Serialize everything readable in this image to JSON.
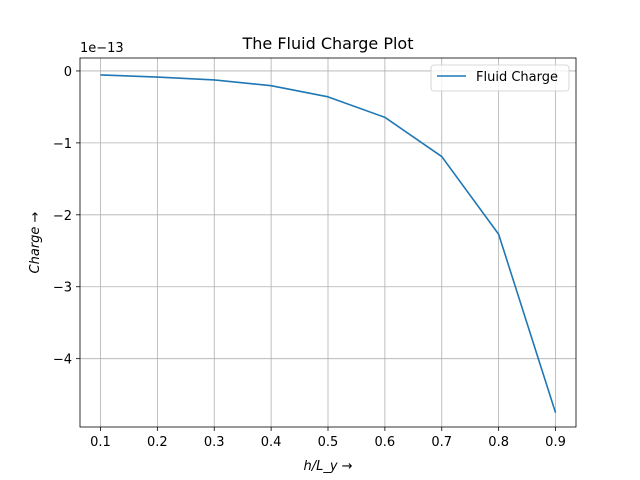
{
  "chart_data": {
    "type": "line",
    "title": "The Fluid Charge Plot",
    "xlabel": "h/L_y →",
    "ylabel": "Charge →",
    "offset_text": "1e−13",
    "xlim": [
      0.064,
      0.936
    ],
    "ylim": [
      -4.95,
      0.18
    ],
    "xticks": [
      0.1,
      0.2,
      0.3,
      0.4,
      0.5,
      0.6,
      0.7,
      0.8,
      0.9
    ],
    "xtick_labels": [
      "0.1",
      "0.2",
      "0.3",
      "0.4",
      "0.5",
      "0.6",
      "0.7",
      "0.8",
      "0.9"
    ],
    "yticks": [
      0,
      -1,
      -2,
      -3,
      -4
    ],
    "ytick_labels": [
      "0",
      "−1",
      "−2",
      "−3",
      "−4"
    ],
    "grid": true,
    "legend_position": "upper right",
    "series": [
      {
        "name": "Fluid Charge",
        "color": "#1f77b4",
        "x": [
          0.1,
          0.2,
          0.3,
          0.4,
          0.5,
          0.6,
          0.7,
          0.8,
          0.9
        ],
        "y": [
          -0.055,
          -0.085,
          -0.125,
          -0.205,
          -0.36,
          -0.645,
          -1.19,
          -2.27,
          -4.75
        ]
      }
    ]
  }
}
